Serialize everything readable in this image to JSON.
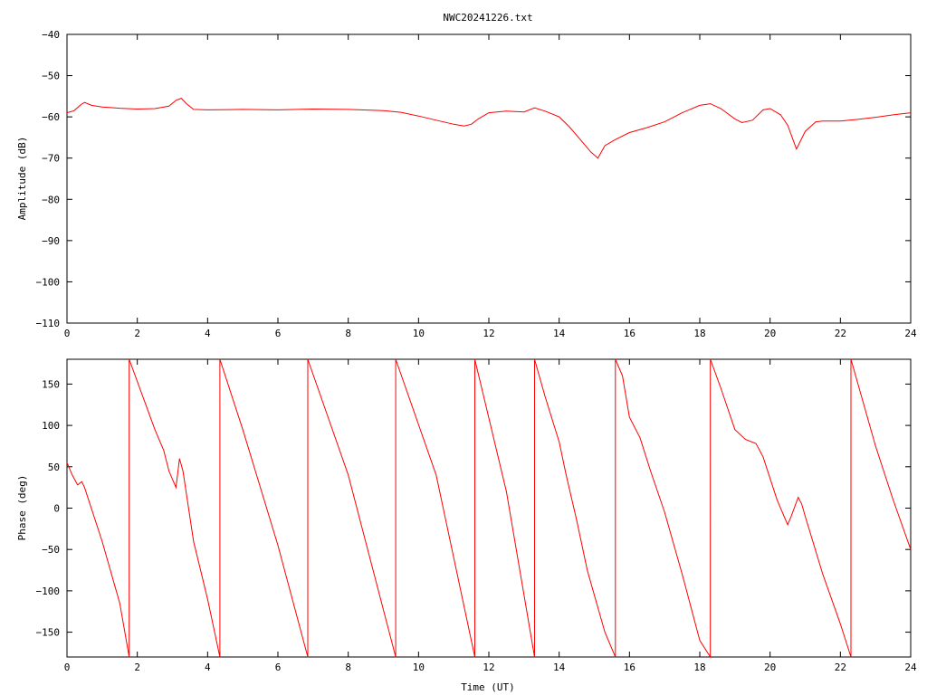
{
  "title": "NWC20241226.txt",
  "colors": {
    "series": "#ff0000",
    "frame": "#000000",
    "background": "#ffffff"
  },
  "chart_data": [
    {
      "type": "line",
      "xlabel": "",
      "ylabel": "Amplitude (dB)",
      "xlim": [
        0,
        24
      ],
      "ylim": [
        -110,
        -40
      ],
      "xticks": [
        0,
        2,
        4,
        6,
        8,
        10,
        12,
        14,
        16,
        18,
        20,
        22,
        24
      ],
      "yticks": [
        -110,
        -100,
        -90,
        -80,
        -70,
        -60,
        -50,
        -40
      ],
      "grid": false,
      "series": [
        {
          "x": [
            0,
            0.2,
            0.4,
            0.5,
            0.7,
            1.0,
            1.5,
            2.0,
            2.5,
            2.9,
            3.1,
            3.25,
            3.4,
            3.6,
            4.0,
            5.0,
            6.0,
            7.0,
            8.0,
            9.0,
            9.5,
            10.0,
            10.5,
            11.0,
            11.3,
            11.5,
            11.7,
            12.0,
            12.5,
            13.0,
            13.3,
            13.6,
            14.0,
            14.3,
            14.6,
            14.9,
            15.1,
            15.3,
            15.6,
            16.0,
            16.5,
            17.0,
            17.5,
            18.0,
            18.3,
            18.6,
            19.0,
            19.2,
            19.5,
            19.8,
            20.0,
            20.3,
            20.5,
            20.75,
            21.0,
            21.3,
            21.5,
            22.0,
            22.5,
            23.0,
            23.5,
            24.0
          ],
          "values": [
            -59,
            -58.5,
            -57,
            -56.5,
            -57.2,
            -57.6,
            -57.9,
            -58.1,
            -58.0,
            -57.4,
            -56.0,
            -55.5,
            -56.8,
            -58.2,
            -58.3,
            -58.2,
            -58.3,
            -58.1,
            -58.2,
            -58.5,
            -58.9,
            -59.8,
            -60.8,
            -61.8,
            -62.2,
            -61.8,
            -60.5,
            -59.0,
            -58.6,
            -58.8,
            -57.8,
            -58.6,
            -60.0,
            -62.5,
            -65.5,
            -68.5,
            -70.0,
            -67.0,
            -65.5,
            -63.8,
            -62.6,
            -61.2,
            -59.0,
            -57.2,
            -56.8,
            -58.0,
            -60.5,
            -61.4,
            -60.8,
            -58.3,
            -58.0,
            -59.5,
            -62.0,
            -67.8,
            -63.5,
            -61.2,
            -61.0,
            -61.0,
            -60.6,
            -60.1,
            -59.5,
            -59.0
          ]
        }
      ]
    },
    {
      "type": "line",
      "xlabel": "Time (UT)",
      "ylabel": "Phase (deg)",
      "xlim": [
        0,
        24
      ],
      "ylim": [
        -180,
        180
      ],
      "xticks": [
        0,
        2,
        4,
        6,
        8,
        10,
        12,
        14,
        16,
        18,
        20,
        22,
        24
      ],
      "yticks": [
        -150,
        -100,
        -50,
        0,
        50,
        100,
        150
      ],
      "grid": false,
      "series": [
        {
          "x": [
            0,
            0.15,
            0.3,
            0.42,
            0.5,
            1.0,
            1.5,
            1.77,
            1.77,
            2.2,
            2.5,
            2.75,
            2.9,
            3.1,
            3.2,
            3.3,
            3.6,
            4.0,
            4.35,
            4.35,
            5.0,
            6.0,
            6.85,
            6.85,
            8.0,
            9.35,
            9.35,
            10.5,
            11.6,
            11.6,
            12.5,
            13.3,
            13.3,
            13.6,
            14.0,
            14.2,
            14.5,
            14.8,
            15.0,
            15.3,
            15.6,
            15.6,
            15.8,
            16.0,
            16.3,
            16.6,
            17.0,
            17.5,
            18.0,
            18.3,
            18.3,
            18.6,
            19.0,
            19.3,
            19.6,
            19.8,
            20.2,
            20.5,
            20.6,
            20.8,
            20.9,
            21.0,
            21.5,
            22.0,
            22.3,
            22.3,
            23.0,
            23.5,
            24.0
          ],
          "values": [
            55,
            40,
            28,
            32,
            25,
            -40,
            -115,
            -180,
            180,
            130,
            95,
            70,
            45,
            25,
            60,
            45,
            -40,
            -110,
            -180,
            180,
            95,
            -45,
            -180,
            180,
            40,
            -180,
            180,
            40,
            -180,
            180,
            20,
            -180,
            180,
            135,
            80,
            40,
            -15,
            -75,
            -105,
            -150,
            -180,
            180,
            160,
            110,
            85,
            45,
            -5,
            -80,
            -160,
            -180,
            180,
            145,
            95,
            83,
            78,
            62,
            10,
            -20,
            -10,
            13,
            5,
            -10,
            -80,
            -140,
            -180,
            180,
            75,
            10,
            -50
          ]
        }
      ]
    }
  ]
}
